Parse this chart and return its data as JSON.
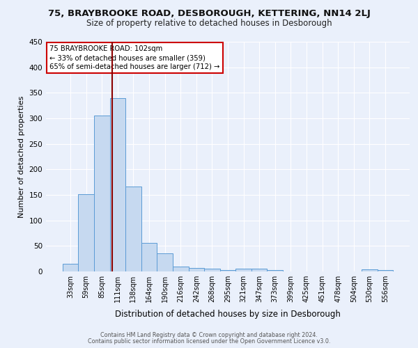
{
  "title_line1": "75, BRAYBROOKE ROAD, DESBOROUGH, KETTERING, NN14 2LJ",
  "title_line2": "Size of property relative to detached houses in Desborough",
  "xlabel": "Distribution of detached houses by size in Desborough",
  "ylabel": "Number of detached properties",
  "footnote1": "Contains HM Land Registry data © Crown copyright and database right 2024.",
  "footnote2": "Contains public sector information licensed under the Open Government Licence v3.0.",
  "bin_labels": [
    "33sqm",
    "59sqm",
    "85sqm",
    "111sqm",
    "138sqm",
    "164sqm",
    "190sqm",
    "216sqm",
    "242sqm",
    "268sqm",
    "295sqm",
    "321sqm",
    "347sqm",
    "373sqm",
    "399sqm",
    "425sqm",
    "451sqm",
    "478sqm",
    "504sqm",
    "530sqm",
    "556sqm"
  ],
  "bar_values": [
    15,
    152,
    306,
    340,
    167,
    56,
    35,
    10,
    7,
    5,
    3,
    5,
    5,
    3,
    0,
    0,
    0,
    0,
    0,
    4,
    3
  ],
  "bar_color": "#c6d9f0",
  "bar_edge_color": "#5b9bd5",
  "background_color": "#eaf0fb",
  "grid_color": "#ffffff",
  "vline_bin_index": 2.65,
  "vline_color": "#8b0000",
  "annotation_text": "75 BRAYBROOKE ROAD: 102sqm\n← 33% of detached houses are smaller (359)\n65% of semi-detached houses are larger (712) →",
  "annotation_box_color": "#ffffff",
  "annotation_box_edge": "#cc0000",
  "ylim": [
    0,
    450
  ],
  "yticks": [
    0,
    50,
    100,
    150,
    200,
    250,
    300,
    350,
    400,
    450
  ]
}
